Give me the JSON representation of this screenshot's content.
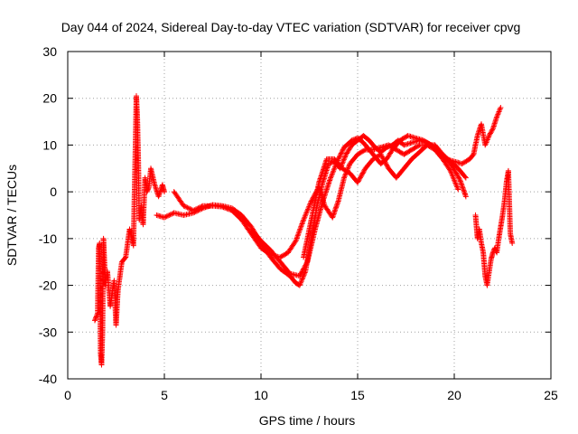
{
  "chart_data": {
    "type": "scatter",
    "title": "Day 044 of 2024, Sidereal Day-to-day VTEC variation (SDTVAR) for receiver cpvg",
    "xlabel": "GPS time / hours",
    "ylabel": "SDTVAR / TECUs",
    "xlim": [
      0,
      25
    ],
    "ylim": [
      -40,
      30
    ],
    "x_ticks": [
      0,
      5,
      10,
      15,
      20,
      25
    ],
    "y_ticks": [
      -40,
      -30,
      -20,
      -10,
      0,
      10,
      20,
      30
    ],
    "grid": true,
    "marker": "+",
    "color": "#ff0000",
    "series": [
      {
        "name": "track-early-1",
        "points": [
          [
            1.4,
            -27.5
          ],
          [
            1.55,
            -26
          ],
          [
            1.6,
            -12
          ],
          [
            1.65,
            -11
          ],
          [
            1.7,
            -34.5
          ],
          [
            1.75,
            -37
          ],
          [
            1.8,
            -30
          ],
          [
            1.85,
            -10
          ],
          [
            1.95,
            -20
          ],
          [
            2.05,
            -17
          ],
          [
            2.2,
            -24.5
          ],
          [
            2.4,
            -19
          ],
          [
            2.5,
            -28.5
          ],
          [
            2.6,
            -21
          ],
          [
            2.8,
            -15
          ],
          [
            3.0,
            -14
          ],
          [
            3.2,
            -8
          ],
          [
            3.3,
            -9.5
          ],
          [
            3.4,
            -11.5
          ],
          [
            3.45,
            -1
          ],
          [
            3.5,
            9
          ],
          [
            3.55,
            20.5
          ],
          [
            3.6,
            16
          ],
          [
            3.65,
            7
          ],
          [
            3.7,
            -6
          ],
          [
            3.8,
            -3
          ],
          [
            3.9,
            -7
          ],
          [
            4.0,
            3
          ],
          [
            4.1,
            0
          ],
          [
            4.2,
            1
          ],
          [
            4.3,
            5
          ],
          [
            4.5,
            1.5
          ],
          [
            4.7,
            -1
          ],
          [
            4.9,
            1.5
          ],
          [
            5.0,
            0
          ]
        ]
      },
      {
        "name": "track-main-1",
        "points": [
          [
            4.6,
            -5
          ],
          [
            5.0,
            -5.5
          ],
          [
            5.5,
            -4.5
          ],
          [
            6.0,
            -5
          ],
          [
            6.5,
            -4.5
          ],
          [
            7.0,
            -3.5
          ],
          [
            7.5,
            -2.8
          ],
          [
            8.0,
            -3
          ],
          [
            8.5,
            -3.5
          ],
          [
            9.0,
            -5
          ],
          [
            9.5,
            -7.5
          ],
          [
            10.0,
            -11
          ],
          [
            10.5,
            -14
          ],
          [
            11.0,
            -16.5
          ],
          [
            11.5,
            -18
          ],
          [
            11.8,
            -19.5
          ],
          [
            12.0,
            -20
          ],
          [
            12.3,
            -17
          ],
          [
            12.6,
            -10
          ],
          [
            12.9,
            -3
          ],
          [
            13.2,
            2
          ],
          [
            13.5,
            6
          ],
          [
            13.8,
            6.5
          ],
          [
            14.1,
            5
          ],
          [
            14.4,
            8
          ],
          [
            14.7,
            10
          ],
          [
            15.0,
            11
          ],
          [
            15.3,
            12
          ],
          [
            15.6,
            11
          ],
          [
            15.9,
            9.5
          ],
          [
            16.2,
            8.5
          ],
          [
            16.5,
            9.5
          ],
          [
            16.8,
            10
          ],
          [
            17.1,
            11
          ],
          [
            17.4,
            10
          ],
          [
            17.8,
            10.5
          ],
          [
            18.2,
            11
          ],
          [
            18.6,
            10.5
          ],
          [
            19.0,
            9.5
          ],
          [
            19.4,
            8
          ],
          [
            19.8,
            6
          ],
          [
            20.1,
            4
          ],
          [
            20.3,
            2.5
          ],
          [
            20.6,
            -1
          ]
        ]
      },
      {
        "name": "track-main-2",
        "points": [
          [
            5.5,
            0
          ],
          [
            6.0,
            -3
          ],
          [
            6.5,
            -4
          ],
          [
            7.0,
            -3
          ],
          [
            7.5,
            -3
          ],
          [
            8.0,
            -3.2
          ],
          [
            8.5,
            -4
          ],
          [
            9.0,
            -6
          ],
          [
            9.5,
            -9
          ],
          [
            10.0,
            -12
          ],
          [
            10.5,
            -13.5
          ],
          [
            11.0,
            -14
          ],
          [
            11.4,
            -13
          ],
          [
            11.8,
            -10.5
          ],
          [
            12.2,
            -6
          ],
          [
            12.6,
            -2
          ],
          [
            13.0,
            1
          ],
          [
            13.3,
            -3
          ],
          [
            13.7,
            -5.5
          ],
          [
            14.0,
            -2
          ],
          [
            14.3,
            3
          ],
          [
            14.6,
            6
          ],
          [
            15.0,
            8
          ],
          [
            15.4,
            9
          ],
          [
            15.8,
            9
          ],
          [
            16.2,
            9.5
          ],
          [
            16.6,
            10
          ],
          [
            17.0,
            9
          ],
          [
            17.4,
            8
          ],
          [
            17.8,
            9
          ],
          [
            18.2,
            10
          ],
          [
            18.6,
            10
          ],
          [
            19.0,
            9
          ],
          [
            19.4,
            7
          ],
          [
            19.8,
            4.5
          ],
          [
            20.2,
            0.5
          ]
        ]
      },
      {
        "name": "track-main-3",
        "points": [
          [
            9.5,
            -8
          ],
          [
            10.0,
            -10.5
          ],
          [
            10.5,
            -12.5
          ],
          [
            11.0,
            -15
          ],
          [
            11.5,
            -17.5
          ],
          [
            12.0,
            -18
          ],
          [
            12.4,
            -15
          ],
          [
            12.8,
            -8
          ],
          [
            13.2,
            -2
          ],
          [
            13.6,
            3
          ],
          [
            14.0,
            7
          ],
          [
            14.3,
            9.5
          ],
          [
            14.7,
            11
          ],
          [
            15.0,
            11.5
          ],
          [
            15.3,
            10.5
          ],
          [
            15.6,
            9
          ],
          [
            15.9,
            7.5
          ],
          [
            16.2,
            6
          ],
          [
            16.5,
            7
          ],
          [
            16.8,
            9
          ],
          [
            17.2,
            11
          ],
          [
            17.6,
            12
          ],
          [
            18.0,
            11.5
          ],
          [
            18.4,
            11
          ],
          [
            18.8,
            10
          ],
          [
            19.2,
            8.5
          ],
          [
            19.6,
            7
          ],
          [
            20.0,
            6.5
          ],
          [
            20.4,
            6
          ],
          [
            20.8,
            7
          ],
          [
            21.0,
            8
          ],
          [
            21.2,
            12
          ],
          [
            21.4,
            14.5
          ],
          [
            21.6,
            10
          ],
          [
            21.8,
            12
          ],
          [
            22.0,
            13.5
          ],
          [
            22.2,
            16
          ],
          [
            22.4,
            18
          ]
        ]
      },
      {
        "name": "track-main-4",
        "points": [
          [
            12.2,
            -14
          ],
          [
            12.6,
            -6
          ],
          [
            13.0,
            2
          ],
          [
            13.4,
            7
          ],
          [
            13.8,
            7
          ],
          [
            14.2,
            5
          ],
          [
            14.6,
            4
          ],
          [
            15.0,
            2
          ],
          [
            15.4,
            5
          ],
          [
            15.8,
            7
          ],
          [
            16.2,
            8
          ],
          [
            16.6,
            5
          ],
          [
            17.0,
            3
          ],
          [
            17.4,
            5
          ],
          [
            17.8,
            7
          ],
          [
            18.2,
            8.5
          ],
          [
            18.6,
            10
          ],
          [
            19.0,
            10
          ],
          [
            19.4,
            8
          ],
          [
            19.8,
            6.5
          ],
          [
            20.2,
            5
          ],
          [
            20.6,
            3
          ]
        ]
      },
      {
        "name": "track-late",
        "points": [
          [
            21.1,
            -5
          ],
          [
            21.2,
            -10
          ],
          [
            21.3,
            -8
          ],
          [
            21.4,
            -11
          ],
          [
            21.5,
            -13
          ],
          [
            21.6,
            -18
          ],
          [
            21.7,
            -20
          ],
          [
            21.9,
            -14.5
          ],
          [
            22.0,
            -13
          ],
          [
            22.1,
            -12
          ],
          [
            22.2,
            -13
          ],
          [
            22.3,
            -10
          ],
          [
            22.4,
            -7.5
          ],
          [
            22.5,
            -5
          ],
          [
            22.6,
            -2
          ],
          [
            22.7,
            2
          ],
          [
            22.8,
            4.5
          ],
          [
            22.9,
            -9
          ],
          [
            23.0,
            -11
          ]
        ]
      }
    ]
  }
}
